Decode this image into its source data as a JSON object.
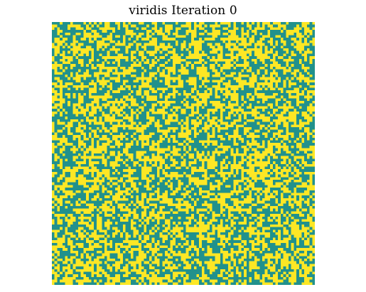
{
  "chart_data": {
    "type": "heatmap",
    "title": "viridis Iteration 0",
    "colormap": "viridis",
    "iteration": 0,
    "grid": {
      "rows": 100,
      "cols": 100,
      "cell_states": [
        0,
        1
      ],
      "fraction_state_1": 0.5,
      "distribution": "random uniform binary noise"
    },
    "colors": {
      "state_0": "#21918c",
      "state_1": "#fde725",
      "background": "#ffffff"
    },
    "axes_visible": false,
    "gridlines": false,
    "legend": "none"
  }
}
